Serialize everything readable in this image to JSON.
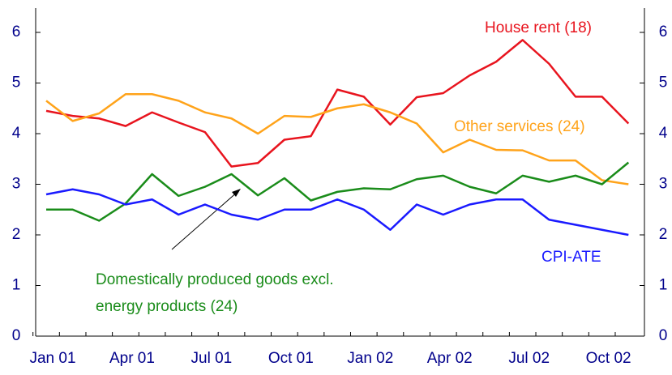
{
  "chart_data": {
    "type": "line",
    "categories": [
      "Jan 01",
      null,
      null,
      "Apr 01",
      null,
      null,
      "Jul 01",
      null,
      null,
      "Oct 01",
      null,
      null,
      "Jan 02",
      null,
      null,
      "Apr 02",
      null,
      null,
      "Jul 02",
      null,
      null,
      "Oct 02",
      null
    ],
    "series": [
      {
        "name": "House rent (18)",
        "color": "#e8141e",
        "values": [
          4.45,
          4.35,
          4.3,
          4.15,
          4.42,
          4.22,
          4.03,
          3.35,
          3.42,
          3.88,
          3.95,
          4.87,
          4.73,
          4.18,
          4.72,
          4.8,
          5.15,
          5.42,
          5.85,
          5.38,
          4.73,
          4.73,
          4.2
        ]
      },
      {
        "name": "Other services (24)",
        "color": "#ffa31a",
        "values": [
          4.65,
          4.25,
          4.4,
          4.78,
          4.78,
          4.65,
          4.42,
          4.3,
          4.0,
          4.35,
          4.33,
          4.5,
          4.58,
          4.42,
          4.2,
          3.63,
          3.88,
          3.68,
          3.67,
          3.47,
          3.47,
          3.08,
          3.0
        ]
      },
      {
        "name": "Domestically produced goods excl. energy products (24)",
        "color": "#1a8c1a",
        "values": [
          2.5,
          2.5,
          2.28,
          2.62,
          3.2,
          2.77,
          2.95,
          3.2,
          2.78,
          3.12,
          2.68,
          2.85,
          2.92,
          2.9,
          3.1,
          3.17,
          2.95,
          2.82,
          3.17,
          3.05,
          3.17,
          3.0,
          3.43
        ]
      },
      {
        "name": "CPI-ATE",
        "color": "#1a1aff",
        "values": [
          2.8,
          2.9,
          2.8,
          2.6,
          2.7,
          2.4,
          2.6,
          2.4,
          2.3,
          2.5,
          2.5,
          2.7,
          2.5,
          2.1,
          2.6,
          2.4,
          2.6,
          2.7,
          2.7,
          2.3,
          2.2,
          2.1,
          2.0
        ]
      }
    ],
    "ylim": [
      0,
      6
    ],
    "yticks": [
      0,
      1,
      2,
      3,
      4,
      5,
      6
    ],
    "y2lim": [
      0,
      6
    ],
    "y2ticks": [
      0,
      1,
      2,
      3,
      4,
      5,
      6
    ]
  }
}
